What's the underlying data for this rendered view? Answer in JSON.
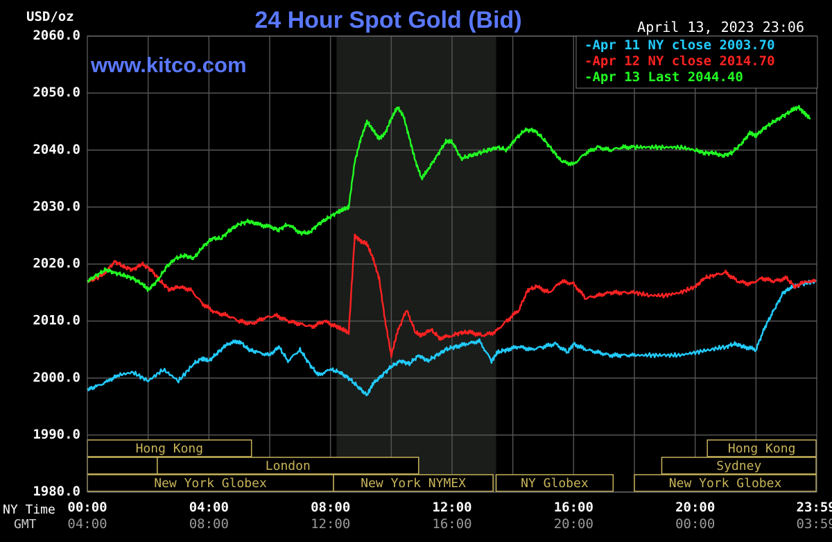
{
  "chart_data": {
    "type": "line",
    "title": "24 Hour Spot Gold (Bid)",
    "watermark": "www.kitco.com",
    "timestamp": "April 13, 2023 23:06",
    "unit_label": "USD/oz",
    "ylim": [
      1980,
      2060
    ],
    "y_ticks": [
      "2060.0",
      "2050.0",
      "2040.0",
      "2030.0",
      "2020.0",
      "2010.0",
      "2000.0",
      "1990.0",
      "1980.0"
    ],
    "y_tick_values": [
      2060,
      2050,
      2040,
      2030,
      2020,
      2010,
      2000,
      1990,
      1980
    ],
    "xlim": [
      0,
      24
    ],
    "x_axis": {
      "ny_label": "NY Time",
      "gmt_label": "GMT",
      "ny_ticks": [
        "00:00",
        "04:00",
        "08:00",
        "12:00",
        "16:00",
        "20:00",
        "23:59"
      ],
      "gmt_ticks": [
        "04:00",
        "08:00",
        "12:00",
        "16:00",
        "20:00",
        "00:00",
        "03:59"
      ],
      "tick_hours": [
        0,
        4,
        8,
        12,
        16,
        20,
        23.98
      ]
    },
    "grid": true,
    "legend_position": "top-right",
    "highlight_hours": [
      8.2,
      13.45
    ],
    "series": [
      {
        "name": "Apr 11 NY close 2003.70",
        "color": "#22ccff",
        "x": [
          0,
          0.3,
          0.7,
          1.0,
          1.5,
          2.0,
          2.5,
          3.0,
          3.5,
          3.8,
          4.0,
          4.3,
          4.6,
          5.0,
          5.3,
          5.6,
          6.0,
          6.3,
          6.6,
          7.0,
          7.3,
          7.6,
          8.0,
          8.3,
          8.6,
          8.9,
          9.2,
          9.4,
          9.7,
          10.0,
          10.3,
          10.6,
          10.9,
          11.2,
          11.5,
          11.8,
          12.1,
          12.5,
          12.9,
          13.3,
          13.5,
          13.8,
          14.2,
          14.6,
          15.0,
          15.4,
          15.8,
          16.0,
          16.4,
          16.8,
          17.2,
          17.6,
          18.0,
          18.5,
          19.0,
          19.5,
          20.0,
          20.5,
          21.0,
          21.3,
          21.6,
          22.0,
          22.3,
          22.6,
          22.9,
          23.2,
          23.5,
          23.98
        ],
        "y": [
          1998.0,
          1998.5,
          1999.5,
          2000.5,
          2001.0,
          1999.5,
          2001.5,
          1999.5,
          2002.5,
          2003.5,
          2003.0,
          2004.5,
          2006.0,
          2006.5,
          2005.0,
          2004.5,
          2004.0,
          2005.5,
          2003.0,
          2005.0,
          2002.5,
          2000.5,
          2001.5,
          2001.0,
          2000.0,
          1998.5,
          1997.0,
          1999.0,
          2000.5,
          2002.0,
          2003.0,
          2002.5,
          2004.0,
          2003.0,
          2004.0,
          2005.0,
          2005.5,
          2006.0,
          2006.5,
          2003.0,
          2004.5,
          2005.0,
          2005.5,
          2005.0,
          2005.5,
          2006.0,
          2004.5,
          2006.0,
          2005.0,
          2004.5,
          2004.0,
          2004.0,
          2004.0,
          2004.0,
          2004.0,
          2004.0,
          2004.5,
          2005.0,
          2005.5,
          2006.0,
          2005.5,
          2005.0,
          2009.0,
          2012.0,
          2015.0,
          2016.0,
          2016.5,
          2017.0
        ]
      },
      {
        "name": "Apr 12 NY close 2014.70",
        "color": "#ff2222",
        "x": [
          0,
          0.3,
          0.6,
          0.9,
          1.2,
          1.5,
          1.8,
          2.1,
          2.4,
          2.7,
          3.0,
          3.4,
          3.8,
          4.2,
          4.6,
          5.0,
          5.4,
          5.8,
          6.2,
          6.6,
          7.0,
          7.4,
          7.8,
          8.2,
          8.4,
          8.6,
          8.8,
          9.0,
          9.2,
          9.4,
          9.6,
          9.8,
          10.0,
          10.2,
          10.5,
          10.8,
          11.0,
          11.3,
          11.6,
          12.0,
          12.3,
          12.6,
          13.0,
          13.4,
          13.8,
          14.2,
          14.5,
          14.8,
          15.2,
          15.6,
          16.0,
          16.4,
          16.8,
          17.2,
          17.6,
          18.0,
          18.5,
          19.0,
          19.5,
          20.0,
          20.3,
          20.6,
          21.0,
          21.4,
          21.8,
          22.2,
          22.6,
          23.0,
          23.3,
          23.6,
          23.98
        ],
        "y": [
          2017.0,
          2017.5,
          2018.5,
          2020.5,
          2019.5,
          2019.0,
          2020.0,
          2019.0,
          2017.0,
          2015.5,
          2016.0,
          2015.5,
          2013.0,
          2011.5,
          2011.0,
          2010.0,
          2009.5,
          2010.5,
          2011.0,
          2010.0,
          2009.5,
          2009.0,
          2010.0,
          2009.0,
          2008.5,
          2008.0,
          2025.0,
          2024.0,
          2023.5,
          2021.0,
          2017.5,
          2010.0,
          2004.0,
          2008.0,
          2012.0,
          2008.0,
          2007.5,
          2008.5,
          2007.0,
          2007.5,
          2008.0,
          2008.0,
          2007.5,
          2008.0,
          2010.0,
          2012.0,
          2015.5,
          2016.0,
          2015.0,
          2017.0,
          2016.5,
          2014.0,
          2014.5,
          2015.0,
          2015.0,
          2015.0,
          2014.5,
          2014.5,
          2015.0,
          2016.0,
          2017.5,
          2018.0,
          2018.5,
          2017.0,
          2016.5,
          2017.5,
          2017.0,
          2017.5,
          2016.0,
          2017.0,
          2017.0
        ]
      },
      {
        "name": "Apr 13 Last 2044.40",
        "color": "#22ff22",
        "x": [
          0,
          0.3,
          0.6,
          0.9,
          1.2,
          1.5,
          1.8,
          2.0,
          2.3,
          2.6,
          2.9,
          3.2,
          3.5,
          3.8,
          4.1,
          4.4,
          4.7,
          5.0,
          5.3,
          5.6,
          6.0,
          6.3,
          6.6,
          7.0,
          7.3,
          7.6,
          7.9,
          8.2,
          8.4,
          8.6,
          8.8,
          9.0,
          9.2,
          9.4,
          9.6,
          9.8,
          10.0,
          10.2,
          10.4,
          10.6,
          10.8,
          11.0,
          11.2,
          11.5,
          11.8,
          12.0,
          12.3,
          12.6,
          12.9,
          13.2,
          13.5,
          13.8,
          14.1,
          14.4,
          14.7,
          15.0,
          15.3,
          15.6,
          16.0,
          16.4,
          16.8,
          17.2,
          17.6,
          18.0,
          18.5,
          19.0,
          19.5,
          20.0,
          20.3,
          20.6,
          20.9,
          21.2,
          21.5,
          21.8,
          22.0,
          22.3,
          22.6,
          22.9,
          23.2,
          23.4,
          23.6,
          23.8
        ],
        "y": [
          2017.0,
          2018.0,
          2019.0,
          2018.5,
          2018.0,
          2017.5,
          2016.5,
          2015.5,
          2017.0,
          2019.5,
          2021.0,
          2021.5,
          2021.0,
          2023.0,
          2024.5,
          2024.5,
          2026.0,
          2027.0,
          2027.5,
          2027.0,
          2026.5,
          2026.0,
          2027.0,
          2025.5,
          2025.5,
          2027.0,
          2028.0,
          2029.0,
          2029.5,
          2030.0,
          2038.0,
          2042.0,
          2045.0,
          2043.5,
          2042.0,
          2043.0,
          2045.5,
          2047.5,
          2046.0,
          2042.0,
          2038.0,
          2035.0,
          2036.5,
          2039.0,
          2041.5,
          2041.5,
          2038.5,
          2039.0,
          2039.5,
          2040.0,
          2040.5,
          2040.0,
          2042.0,
          2043.5,
          2043.5,
          2042.0,
          2040.0,
          2038.0,
          2037.5,
          2039.5,
          2040.5,
          2040.0,
          2040.5,
          2040.5,
          2040.5,
          2040.5,
          2040.5,
          2040.0,
          2039.5,
          2039.5,
          2039.0,
          2039.5,
          2041.0,
          2043.0,
          2042.5,
          2044.0,
          2045.0,
          2046.0,
          2047.0,
          2047.5,
          2046.5,
          2045.5
        ]
      }
    ],
    "sessions": [
      {
        "label": "Hong Kong",
        "start": 0,
        "end": 5.4,
        "row": 0
      },
      {
        "label": "",
        "start": 0,
        "end": 2.3,
        "row": 1
      },
      {
        "label": "London",
        "start": 2.3,
        "end": 10.9,
        "row": 1
      },
      {
        "label": "New York Globex",
        "start": 0,
        "end": 8.1,
        "row": 2
      },
      {
        "label": "New York NYMEX",
        "start": 8.1,
        "end": 13.35,
        "row": 2
      },
      {
        "label": "NY Globex",
        "start": 13.45,
        "end": 17.3,
        "row": 2
      },
      {
        "label": "Hong Kong",
        "start": 20.4,
        "end": 23.98,
        "row": 0
      },
      {
        "label": "Sydney",
        "start": 18.9,
        "end": 23.98,
        "row": 1
      },
      {
        "label": "New York Globex",
        "start": 18.0,
        "end": 23.98,
        "row": 2
      }
    ],
    "session_color": "#c8b45a"
  }
}
